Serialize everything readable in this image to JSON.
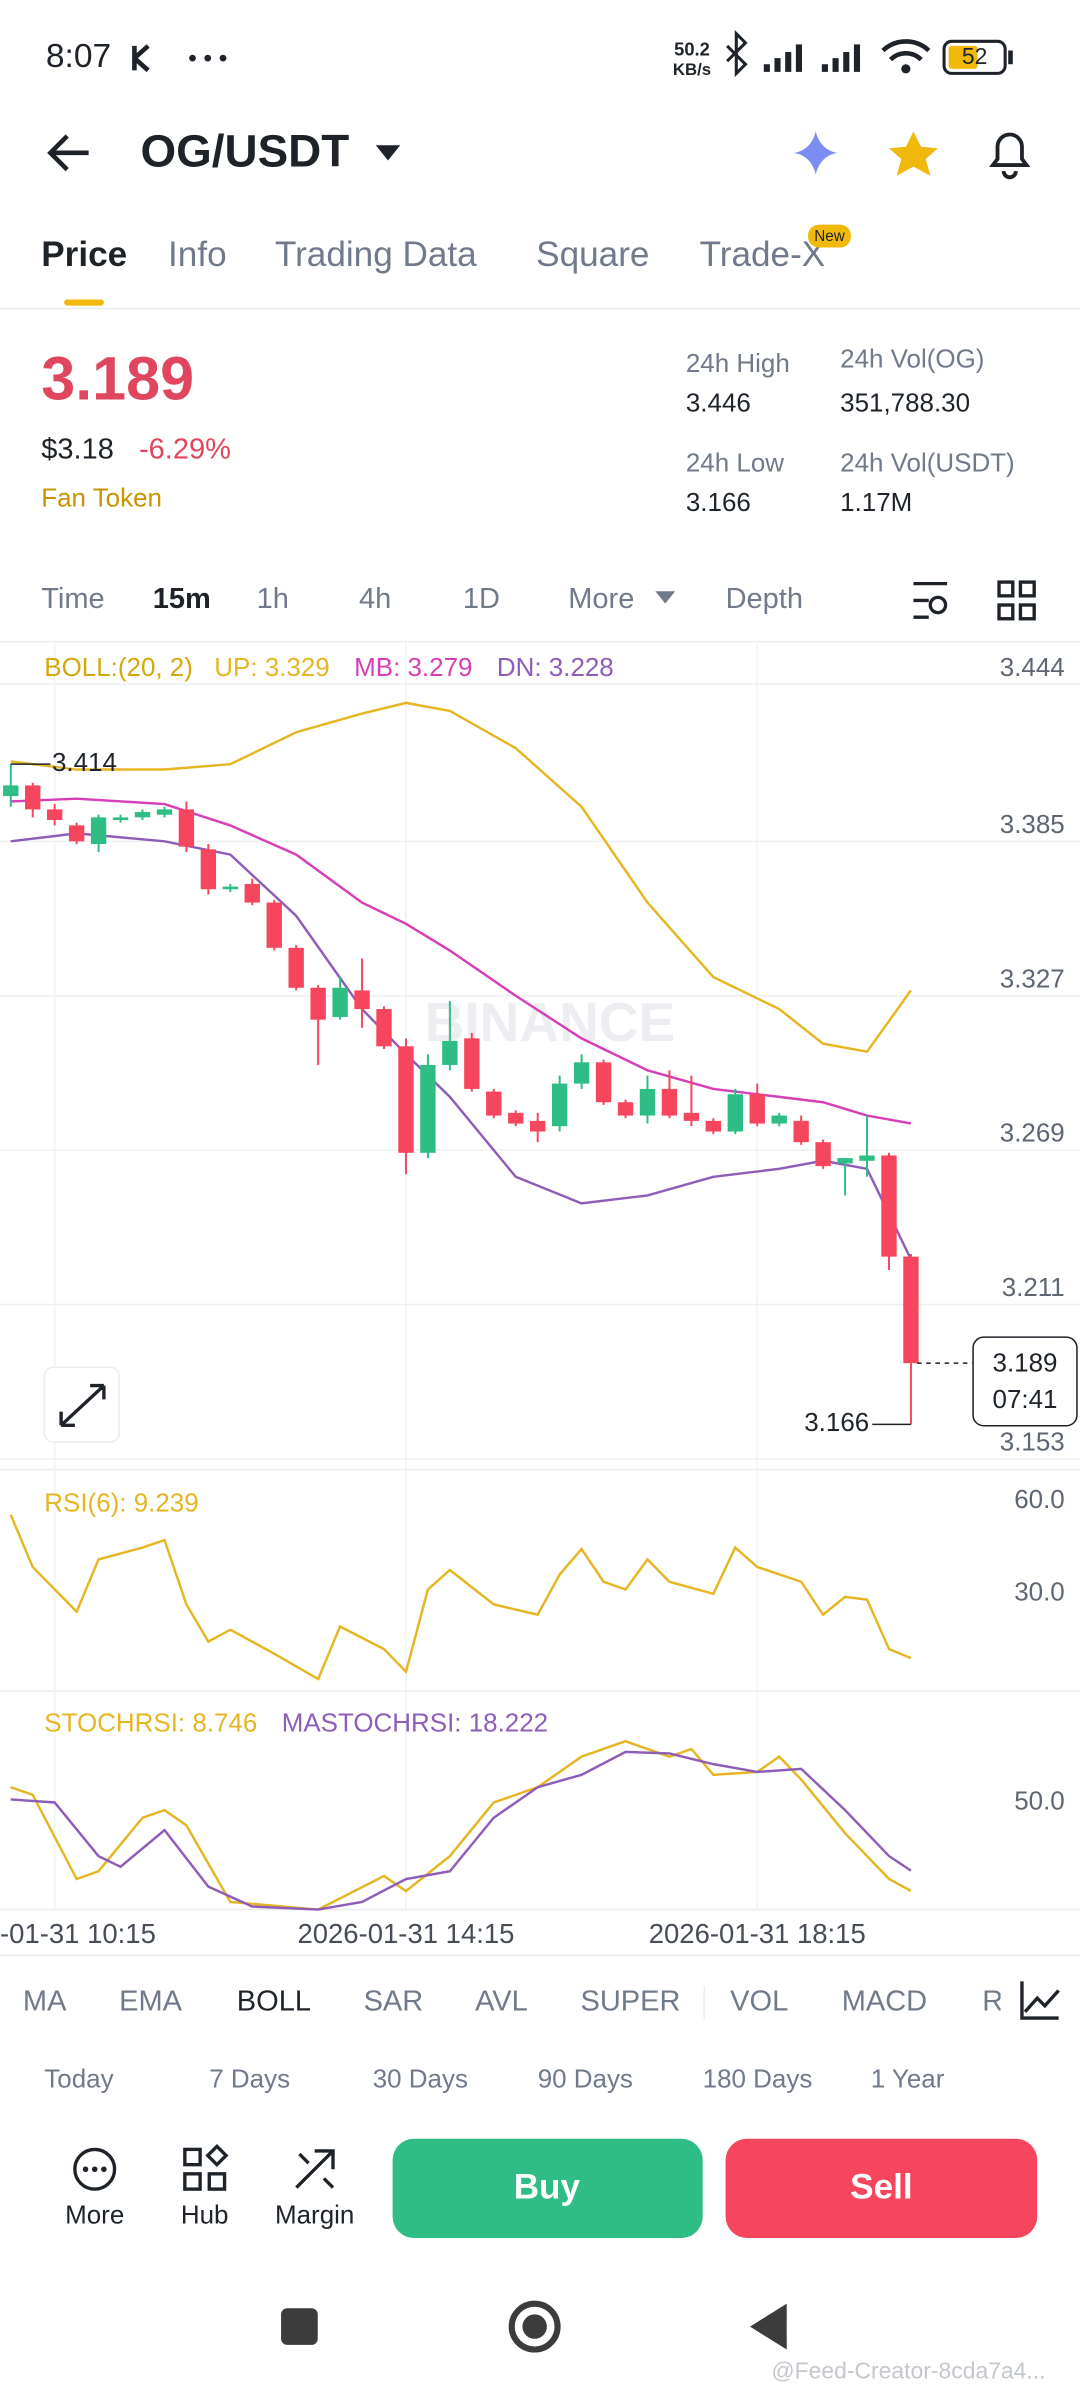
{
  "status_bar": {
    "time": "8:07",
    "speed": "50.2",
    "speed_unit": "KB/s",
    "battery": "52"
  },
  "header": {
    "pair": "OG/USDT"
  },
  "tabs": {
    "items": [
      "Price",
      "Info",
      "Trading Data",
      "Square",
      "Trade-X"
    ],
    "badge": "New"
  },
  "summary": {
    "price": "3.189",
    "usd_price": "$3.18",
    "change": "-6.29%",
    "tag": "Fan Token",
    "stats": [
      {
        "label": "24h High",
        "value": "3.446"
      },
      {
        "label": "24h Vol(OG)",
        "value": "351,788.30"
      },
      {
        "label": "24h Low",
        "value": "3.166"
      },
      {
        "label": "24h Vol(USDT)",
        "value": "1.17M"
      }
    ]
  },
  "intervals": [
    "Time",
    "15m",
    "1h",
    "4h",
    "1D",
    "More",
    "Depth"
  ],
  "chart_data": [
    {
      "type": "candlestick",
      "indicator": "BOLL:(20, 2)",
      "indicator_color": "#d4a80a",
      "watermark": "BINANCE",
      "up_color": "#2ebd85",
      "down_color": "#f6465d",
      "grid": true,
      "categories": [
        null,
        null,
        "-01-31 10:15",
        null,
        null,
        null,
        null,
        null,
        null,
        null,
        null,
        null,
        null,
        null,
        null,
        null,
        null,
        null,
        "2026-01-31 14:15",
        null,
        null,
        null,
        null,
        null,
        null,
        null,
        null,
        null,
        null,
        null,
        null,
        null,
        null,
        null,
        "2026-01-31 18:15",
        null,
        null,
        null,
        null,
        null,
        null,
        null
      ],
      "open": [
        3.402,
        3.406,
        3.397,
        3.391,
        3.384,
        3.393,
        3.394,
        3.395,
        3.397,
        3.382,
        3.367,
        3.369,
        3.362,
        3.345,
        3.33,
        3.319,
        3.329,
        3.322,
        3.308,
        3.268,
        3.301,
        3.311,
        3.291,
        3.283,
        3.28,
        3.278,
        3.294,
        3.302,
        3.287,
        3.282,
        3.292,
        3.283,
        3.28,
        3.276,
        3.29,
        3.279,
        3.28,
        3.272,
        3.264,
        3.265,
        3.267,
        3.229
      ],
      "high": [
        3.414,
        3.407,
        3.399,
        3.392,
        3.395,
        3.395,
        3.397,
        3.398,
        3.4,
        3.384,
        3.369,
        3.371,
        3.363,
        3.346,
        3.331,
        3.334,
        3.341,
        3.323,
        3.311,
        3.305,
        3.325,
        3.313,
        3.292,
        3.284,
        3.283,
        3.297,
        3.305,
        3.303,
        3.288,
        3.297,
        3.299,
        3.297,
        3.281,
        3.292,
        3.294,
        3.283,
        3.282,
        3.273,
        3.266,
        3.282,
        3.268,
        3.23
      ],
      "low": [
        3.398,
        3.394,
        3.391,
        3.384,
        3.381,
        3.392,
        3.393,
        3.394,
        3.381,
        3.365,
        3.366,
        3.361,
        3.344,
        3.329,
        3.301,
        3.318,
        3.315,
        3.307,
        3.26,
        3.266,
        3.299,
        3.291,
        3.281,
        3.278,
        3.272,
        3.276,
        3.292,
        3.286,
        3.281,
        3.279,
        3.281,
        3.278,
        3.275,
        3.275,
        3.278,
        3.278,
        3.271,
        3.262,
        3.252,
        3.259,
        3.224,
        3.166
      ],
      "close": [
        3.406,
        3.397,
        3.393,
        3.385,
        3.394,
        3.394,
        3.396,
        3.397,
        3.383,
        3.367,
        3.368,
        3.362,
        3.345,
        3.33,
        3.318,
        3.33,
        3.322,
        3.308,
        3.268,
        3.301,
        3.31,
        3.292,
        3.282,
        3.279,
        3.276,
        3.294,
        3.302,
        3.287,
        3.282,
        3.292,
        3.282,
        3.28,
        3.276,
        3.29,
        3.279,
        3.282,
        3.272,
        3.263,
        3.266,
        3.267,
        3.229,
        3.189
      ],
      "series": [
        {
          "name": "UP: 3.329",
          "color": "#e5b622",
          "x": [
            0,
            3,
            7,
            10,
            13,
            16,
            18,
            20,
            23,
            26,
            29,
            32,
            35,
            37,
            39,
            41
          ],
          "values": [
            3.415,
            3.412,
            3.412,
            3.414,
            3.426,
            3.433,
            3.437,
            3.434,
            3.42,
            3.398,
            3.362,
            3.334,
            3.322,
            3.309,
            3.306,
            3.329
          ]
        },
        {
          "name": "MB: 3.279",
          "color": "#d63fb5",
          "x": [
            0,
            3,
            7,
            10,
            13,
            16,
            18,
            20,
            23,
            26,
            29,
            32,
            35,
            37,
            39,
            41
          ],
          "values": [
            3.4,
            3.401,
            3.399,
            3.391,
            3.38,
            3.362,
            3.354,
            3.344,
            3.327,
            3.311,
            3.299,
            3.292,
            3.289,
            3.287,
            3.282,
            3.279
          ]
        },
        {
          "name": "DN: 3.228",
          "color": "#8e5db8",
          "x": [
            0,
            3,
            7,
            10,
            13,
            16,
            18,
            20,
            23,
            26,
            29,
            32,
            35,
            37,
            39,
            41
          ],
          "values": [
            3.385,
            3.388,
            3.385,
            3.38,
            3.357,
            3.322,
            3.305,
            3.289,
            3.259,
            3.249,
            3.252,
            3.259,
            3.262,
            3.265,
            3.262,
            3.228
          ]
        }
      ],
      "xlim": [
        -0.49,
        48.7
      ],
      "ylim": [
        3.149,
        3.46
      ],
      "yticks": [
        3.444,
        3.385,
        3.327,
        3.269,
        3.211,
        3.153
      ],
      "high_label": 3.414,
      "low_label": 3.166,
      "last_price": 3.189,
      "countdown": "07:41"
    },
    {
      "type": "line",
      "grid": false,
      "series": [
        {
          "name": "RSI(6): 9.239",
          "color": "#e5b622",
          "x": [
            0,
            1,
            3,
            4,
            6,
            7,
            8,
            9,
            10,
            12,
            14,
            15,
            17,
            18,
            19,
            20,
            22,
            24,
            25,
            26,
            27,
            28,
            29,
            30,
            32,
            33,
            34,
            36,
            37,
            38,
            39,
            40,
            41
          ],
          "values": [
            55.6,
            38.7,
            24.2,
            41.1,
            45.0,
            47.4,
            26.6,
            14.5,
            18.4,
            10.6,
            2.4,
            19.4,
            12.1,
            4.8,
            31.4,
            37.7,
            26.6,
            23.2,
            36.3,
            44.5,
            33.9,
            31.4,
            41.1,
            33.9,
            30.0,
            45.0,
            38.7,
            33.9,
            23.2,
            29.0,
            28.1,
            12.1,
            9.2
          ]
        }
      ],
      "xlim": [
        -0.49,
        48.7
      ],
      "ylim": [
        -1.5,
        70.2
      ],
      "yticks": [
        {
          "value": 60,
          "label": "60.0"
        },
        {
          "value": 30,
          "label": "30.0"
        }
      ]
    },
    {
      "type": "line",
      "grid": false,
      "series": [
        {
          "name": "STOCHRSI: 8.746",
          "color": "#e5b622",
          "x": [
            0,
            1,
            3,
            4,
            6,
            7,
            8,
            10,
            14,
            17,
            18,
            20,
            22,
            24,
            26,
            28,
            30,
            31,
            32,
            34,
            35,
            36,
            38,
            40,
            41
          ],
          "values": [
            57.1,
            53.6,
            14.3,
            17.9,
            42.9,
            46.4,
            39.3,
            3.6,
            0,
            15.7,
            8.6,
            25.0,
            50.0,
            57.1,
            71.4,
            78.6,
            71.4,
            75.0,
            62.9,
            64.3,
            71.4,
            60.7,
            35.7,
            14.3,
            8.7
          ]
        },
        {
          "name": "MASTOCHRSI: 18.222",
          "color": "#8e5db8",
          "x": [
            0,
            2,
            4,
            5,
            7,
            9,
            11,
            14,
            16,
            18,
            20,
            22,
            24,
            26,
            28,
            30,
            32,
            34,
            36,
            38,
            40,
            41
          ],
          "values": [
            51.4,
            50.0,
            25.0,
            20.0,
            37.1,
            10.7,
            1.4,
            0,
            3.6,
            14.3,
            17.9,
            42.9,
            57.1,
            62.9,
            73.6,
            72.9,
            67.9,
            64.3,
            65.7,
            46.4,
            25.0,
            18.2
          ]
        }
      ],
      "xlim": [
        -0.49,
        48.7
      ],
      "ylim": [
        0,
        102
      ],
      "yticks": [
        {
          "value": 50,
          "label": "50.0"
        }
      ]
    }
  ],
  "indicator_tabs": [
    "MA",
    "EMA",
    "BOLL",
    "SAR",
    "AVL",
    "SUPER",
    "VOL",
    "MACD",
    "R"
  ],
  "periods": [
    "Today",
    "7 Days",
    "30 Days",
    "90 Days",
    "180 Days",
    "1 Year"
  ],
  "bottom_bar": {
    "items": [
      "More",
      "Hub",
      "Margin"
    ],
    "buy": "Buy",
    "sell": "Sell"
  },
  "watermark": "@Feed-Creator-8cda7a4..."
}
